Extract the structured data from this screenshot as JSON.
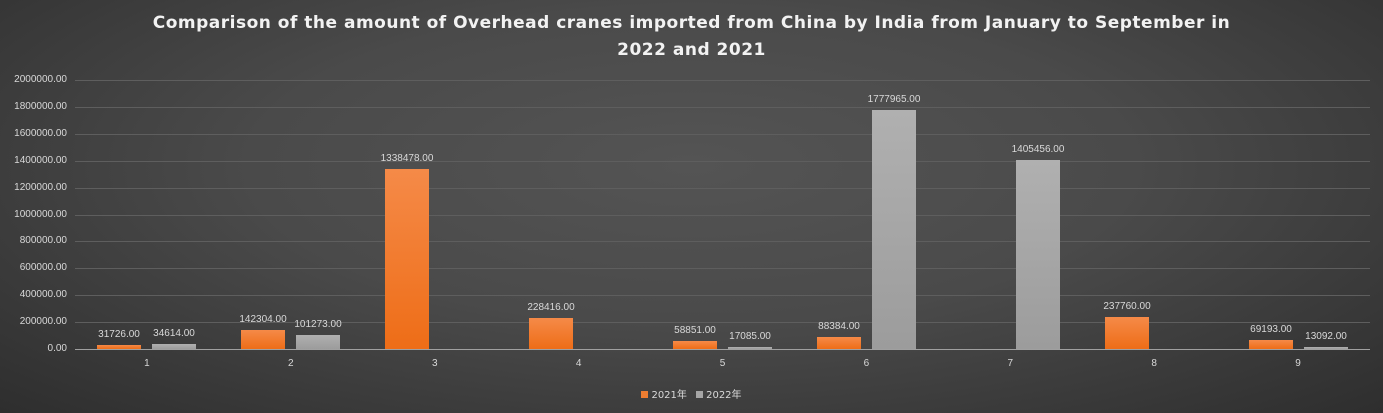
{
  "chart_data": {
    "type": "bar",
    "title_lines": [
      "Comparison of the amount of Overhead cranes imported from China by India from January to September in",
      "2022 and 2021"
    ],
    "title": "Comparison of the amount of Overhead cranes imported from China by India from January to September in 2022 and 2021",
    "categories": [
      "1",
      "2",
      "3",
      "4",
      "5",
      "6",
      "7",
      "8",
      "9"
    ],
    "series": [
      {
        "name": "2021年",
        "color": "#ED7D31",
        "values": [
          31726.0,
          142304.0,
          1338478.0,
          228416.0,
          58851.0,
          88384.0,
          null,
          237760.0,
          69193.0
        ],
        "labels": [
          "31726.00",
          "142304.00",
          "1338478.00",
          "228416.00",
          "58851.00",
          "88384.00",
          "",
          "237760.00",
          "69193.00"
        ]
      },
      {
        "name": "2022年",
        "color": "#A5A5A5",
        "values": [
          34614.0,
          101273.0,
          null,
          null,
          17085.0,
          1777965.0,
          1405456.0,
          null,
          13092.0
        ],
        "labels": [
          "34614.00",
          "101273.00",
          "",
          "",
          "17085.00",
          "1777965.00",
          "1405456.00",
          "",
          "13092.00"
        ]
      }
    ],
    "yticks": [
      "0.00",
      "200000.00",
      "400000.00",
      "600000.00",
      "800000.00",
      "1000000.00",
      "1200000.00",
      "1400000.00",
      "1600000.00",
      "1800000.00",
      "2000000.00"
    ],
    "ylim": [
      0,
      2000000
    ],
    "xlabel": "",
    "ylabel": "",
    "grid": true,
    "legend_position": "bottom"
  }
}
